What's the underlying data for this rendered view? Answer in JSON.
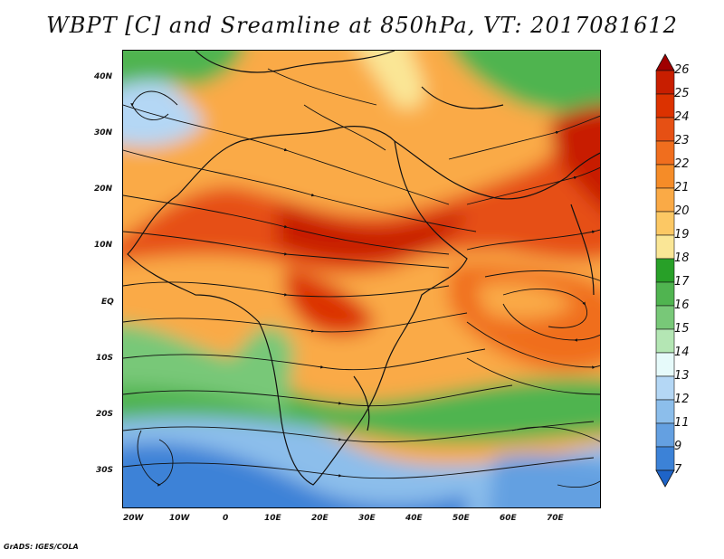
{
  "title": "WBPT [C] and Sreamline at 850hPa, VT: 2017081612",
  "credit": "GrADS: IGES/COLA",
  "map": {
    "variable": "WBPT [C]",
    "overlay": "Streamline",
    "level": "850hPa",
    "valid_time": "2017081612",
    "lat_labels": [
      "40N",
      "30N",
      "20N",
      "10N",
      "EQ",
      "10S",
      "20S",
      "30S"
    ],
    "lon_labels": [
      "20W",
      "10W",
      "0",
      "10E",
      "20E",
      "30E",
      "40E",
      "50E",
      "60E",
      "70E"
    ],
    "lon_range": [
      -22,
      80
    ],
    "lat_range": [
      -36,
      45
    ]
  },
  "colorbar": {
    "labels": [
      "26",
      "25",
      "24",
      "23",
      "22",
      "21",
      "20",
      "19",
      "18",
      "17",
      "16",
      "15",
      "14",
      "13",
      "12",
      "11",
      "9",
      "7"
    ],
    "colors": [
      "#a00000",
      "#c81e00",
      "#dc3200",
      "#e65014",
      "#f06e1e",
      "#f58c28",
      "#faaa46",
      "#fcc864",
      "#fae696",
      "#28a028",
      "#50b450",
      "#78c878",
      "#b4e6b4",
      "#e6fafa",
      "#b4d7f5",
      "#8cbeeb",
      "#64a0e1",
      "#3c82d7",
      "#1e64c8"
    ]
  }
}
